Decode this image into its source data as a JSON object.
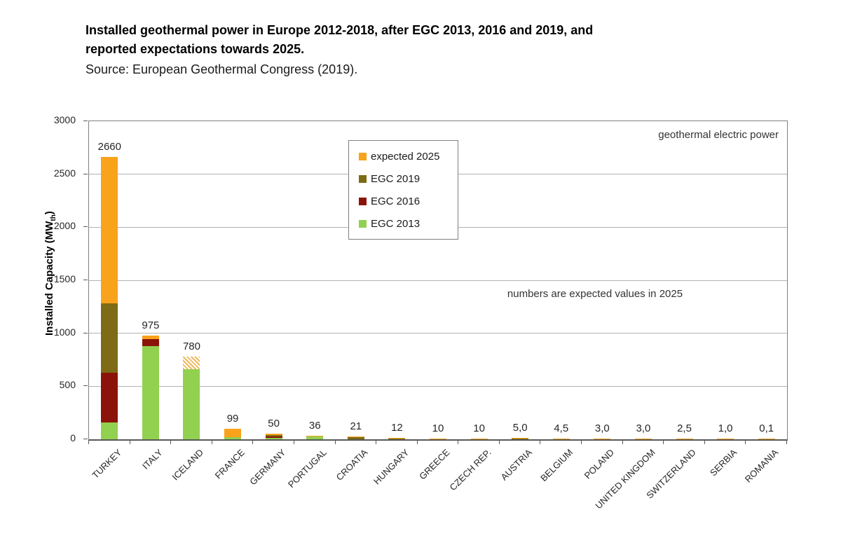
{
  "header": {
    "title_line1": "Installed geothermal power in Europe 2012-2018, after EGC 2013, 2016 and 2019, and",
    "title_line2": "reported expectations towards 2025.",
    "source": "Source: European Geothermal Congress (2019)."
  },
  "chart_data": {
    "type": "bar",
    "stacked": true,
    "unit": "MW",
    "ylabel": {
      "prefix": "Installed Capacity (MW",
      "sub": "th",
      "suffix": ")"
    },
    "ylim": [
      0,
      3000
    ],
    "y_ticks": [
      0,
      500,
      1000,
      1500,
      2000,
      2500,
      3000
    ],
    "grid": "horizontal-gray",
    "legend_position": "upper-left-of-center-inside",
    "annotations": {
      "top_right": "geothermal electric power",
      "middle": "numbers are expected values in 2025"
    },
    "series": [
      {
        "key": "egc2013",
        "label": "EGC 2013",
        "color": "#92D050"
      },
      {
        "key": "egc2016",
        "label": "EGC 2016",
        "color": "#8C1309"
      },
      {
        "key": "egc2019",
        "label": "EGC 2019",
        "color": "#7D6B15"
      },
      {
        "key": "expected2025",
        "label": "expected 2025",
        "color": "#F9A21B"
      }
    ],
    "value_note": "country values are cumulative installed capacity in MW; label is the expected value in 2025 as printed",
    "countries": [
      {
        "name": "TURKEY",
        "label": "2660",
        "egc2013": 160,
        "egc2016": 625,
        "egc2019": 1280,
        "expected2025": 2660,
        "hatched_top": false
      },
      {
        "name": "ITALY",
        "label": "975",
        "egc2013": 880,
        "egc2016": 945,
        "egc2019": 945,
        "expected2025": 975,
        "hatched_top": false
      },
      {
        "name": "ICELAND",
        "label": "780",
        "egc2013": 660,
        "egc2016": 660,
        "egc2019": 660,
        "expected2025": 780,
        "hatched_top": true
      },
      {
        "name": "FRANCE",
        "label": "99",
        "egc2013": 17,
        "egc2016": 17,
        "egc2019": 17,
        "expected2025": 99,
        "hatched_top": false
      },
      {
        "name": "GERMANY",
        "label": "50",
        "egc2013": 12,
        "egc2016": 27,
        "egc2019": 38,
        "expected2025": 50,
        "hatched_top": false
      },
      {
        "name": "PORTUGAL",
        "label": "36",
        "egc2013": 29,
        "egc2016": 29,
        "egc2019": 29,
        "expected2025": 36,
        "hatched_top": false
      },
      {
        "name": "CROATIA",
        "label": "21",
        "egc2013": 0,
        "egc2016": 0,
        "egc2019": 17,
        "expected2025": 21,
        "hatched_top": false
      },
      {
        "name": "HUNGARY",
        "label": "12",
        "egc2013": 0,
        "egc2016": 0,
        "egc2019": 3,
        "expected2025": 12,
        "hatched_top": false
      },
      {
        "name": "GREECE",
        "label": "10",
        "egc2013": 0,
        "egc2016": 0,
        "egc2019": 0,
        "expected2025": 10,
        "hatched_top": false
      },
      {
        "name": "CZECH REP.",
        "label": "10",
        "egc2013": 0,
        "egc2016": 0,
        "egc2019": 0,
        "expected2025": 10,
        "hatched_top": false
      },
      {
        "name": "AUSTRIA",
        "label": "5,0",
        "egc2013": 0,
        "egc2016": 0,
        "egc2019": 1,
        "expected2025": 5,
        "hatched_top": false
      },
      {
        "name": "BELGIUM",
        "label": "4,5",
        "egc2013": 0,
        "egc2016": 0,
        "egc2019": 0,
        "expected2025": 4.5,
        "hatched_top": false
      },
      {
        "name": "POLAND",
        "label": "3,0",
        "egc2013": 0,
        "egc2016": 0,
        "egc2019": 0,
        "expected2025": 3,
        "hatched_top": false
      },
      {
        "name": "UNITED KINGDOM",
        "label": "3,0",
        "egc2013": 0,
        "egc2016": 0,
        "egc2019": 0,
        "expected2025": 3,
        "hatched_top": false
      },
      {
        "name": "SWITZERLAND",
        "label": "2,5",
        "egc2013": 0,
        "egc2016": 0,
        "egc2019": 0,
        "expected2025": 2.5,
        "hatched_top": false
      },
      {
        "name": "SERBIA",
        "label": "1,0",
        "egc2013": 0,
        "egc2016": 0,
        "egc2019": 0,
        "expected2025": 1,
        "hatched_top": false
      },
      {
        "name": "ROMANIA",
        "label": "0,1",
        "egc2013": 0,
        "egc2016": 0,
        "egc2019": 0,
        "expected2025": 0.1,
        "hatched_top": false
      }
    ]
  }
}
